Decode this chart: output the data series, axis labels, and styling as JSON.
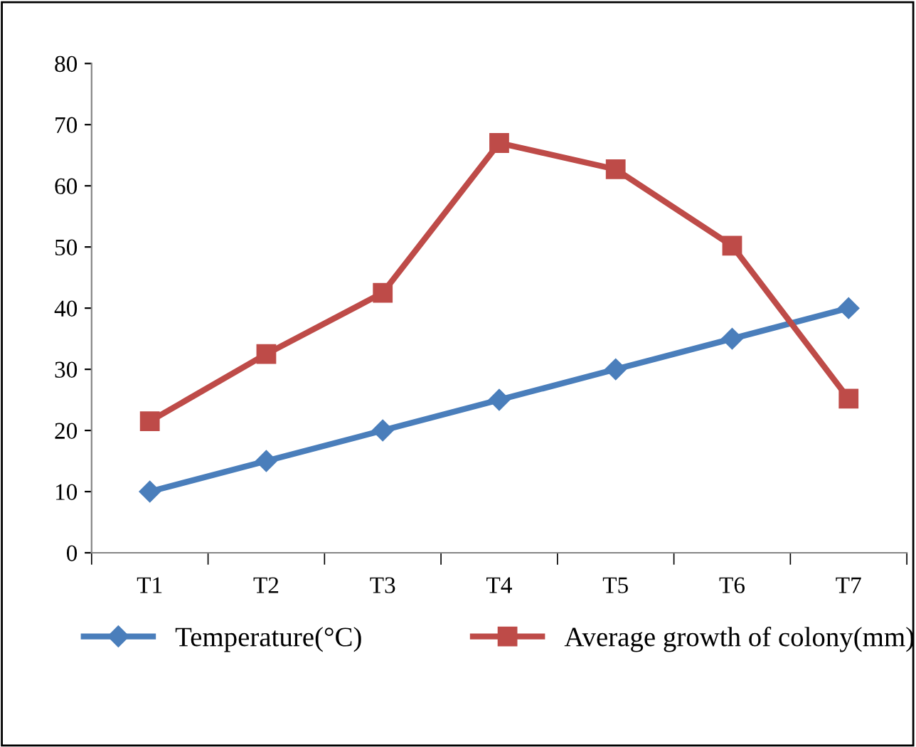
{
  "chart_data": {
    "type": "line",
    "categories": [
      "T1",
      "T2",
      "T3",
      "T4",
      "T5",
      "T6",
      "T7"
    ],
    "series": [
      {
        "name": "Temperature(°C)",
        "color": "#4a7ebb",
        "values": [
          10,
          15,
          20,
          25,
          30,
          35,
          40
        ],
        "marker": "diamond"
      },
      {
        "name": "Average growth of colony(mm)",
        "color": "#be4b48",
        "values": [
          21.5,
          32.5,
          42.5,
          67,
          62.7,
          50.2,
          25.2
        ],
        "marker": "square"
      }
    ],
    "ylim": [
      0,
      80
    ],
    "yticks": [
      0,
      10,
      20,
      30,
      40,
      50,
      60,
      70,
      80
    ],
    "grid": false,
    "legend": "bottom",
    "line_style": "solid"
  }
}
